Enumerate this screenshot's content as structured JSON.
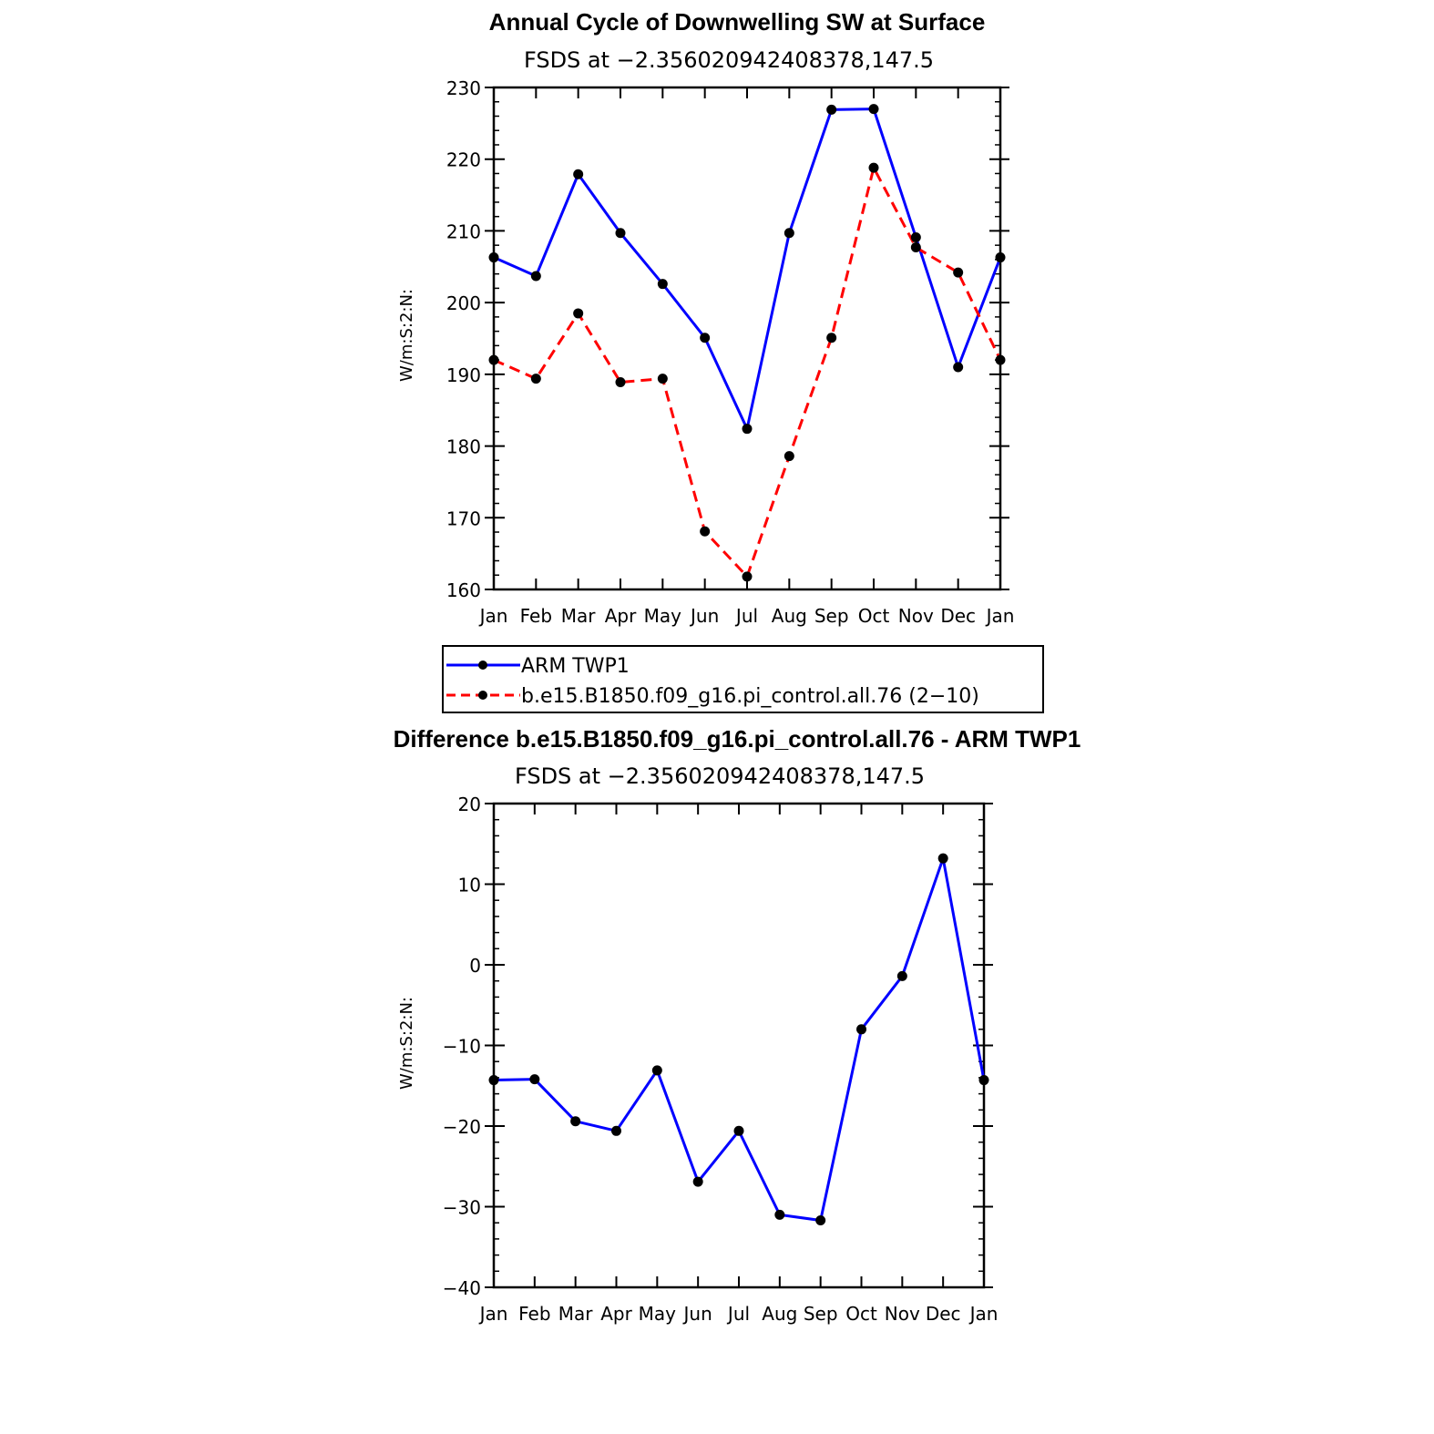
{
  "chart_data": [
    {
      "type": "line",
      "title": "Annual Cycle of Downwelling SW at Surface",
      "subtitle": "FSDS at −2.356020942408378,147.5",
      "ylabel": "W/m:S:2:N:",
      "xlabel": "",
      "categories": [
        "Jan",
        "Feb",
        "Mar",
        "Apr",
        "May",
        "Jun",
        "Jul",
        "Aug",
        "Sep",
        "Oct",
        "Nov",
        "Dec",
        "Jan"
      ],
      "ylim": [
        160,
        230
      ],
      "yticks": [
        160,
        170,
        180,
        190,
        200,
        210,
        220,
        230
      ],
      "grid": false,
      "legend_position": "below",
      "series": [
        {
          "name": "ARM TWP1",
          "color": "#0000ff",
          "dash": "solid",
          "values": [
            206.3,
            203.7,
            217.9,
            209.7,
            202.6,
            195.1,
            182.4,
            209.7,
            226.9,
            227.0,
            209.1,
            191.0,
            206.3
          ]
        },
        {
          "name": "b.e15.B1850.f09_g16.pi_control.all.76 (2−10)",
          "color": "#ff0000",
          "dash": "dashed",
          "values": [
            192.0,
            189.4,
            198.5,
            188.9,
            189.4,
            168.1,
            161.8,
            178.6,
            195.1,
            218.8,
            207.7,
            204.2,
            192.0
          ]
        }
      ]
    },
    {
      "type": "line",
      "title": "Difference b.e15.B1850.f09_g16.pi_control.all.76 - ARM TWP1",
      "subtitle": "FSDS at −2.356020942408378,147.5",
      "ylabel": "W/m:S:2:N:",
      "xlabel": "",
      "categories": [
        "Jan",
        "Feb",
        "Mar",
        "Apr",
        "May",
        "Jun",
        "Jul",
        "Aug",
        "Sep",
        "Oct",
        "Nov",
        "Dec",
        "Jan"
      ],
      "ylim": [
        -40,
        20
      ],
      "yticks": [
        -40,
        -30,
        -20,
        -10,
        0,
        10,
        20
      ],
      "ytick_labels": [
        "−40",
        "−30",
        "−20",
        "−10",
        "0",
        "10",
        "20"
      ],
      "grid": false,
      "series": [
        {
          "color": "#0000ff",
          "dash": "solid",
          "values": [
            -14.3,
            -14.2,
            -19.4,
            -20.6,
            -13.1,
            -26.9,
            -20.6,
            -31.0,
            -31.7,
            -8.0,
            -1.4,
            13.2,
            -14.3
          ]
        }
      ]
    }
  ],
  "legend": {
    "entries": [
      "ARM TWP1",
      "b.e15.B1850.f09_g16.pi_control.all.76 (2−10)"
    ]
  }
}
